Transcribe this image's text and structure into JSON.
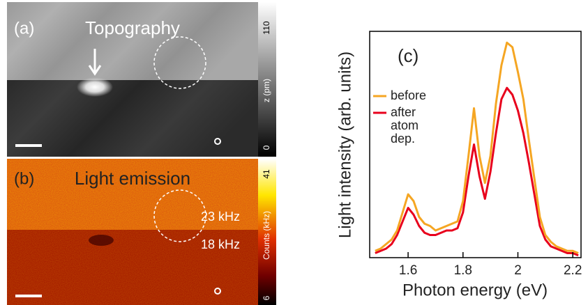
{
  "images": [
    {
      "panel": "(a)",
      "title": "Topography",
      "colorbar_top": "110",
      "colorbar_label": "z (pm)",
      "colorbar_bottom": "0"
    },
    {
      "panel": "(b)",
      "title": "Light emission",
      "colorbar_top": "41",
      "colorbar_label": "Counts (kHz)",
      "colorbar_bottom": "6",
      "upper_rate": "23 kHz",
      "lower_rate": "18 kHz"
    }
  ],
  "chart_data": {
    "type": "line",
    "panel": "(c)",
    "xlabel": "Photon energy (eV)",
    "ylabel": "Light intensity (arb. units)",
    "x": [
      1.48,
      1.5,
      1.52,
      1.54,
      1.56,
      1.58,
      1.6,
      1.62,
      1.64,
      1.66,
      1.68,
      1.7,
      1.72,
      1.74,
      1.76,
      1.78,
      1.8,
      1.82,
      1.84,
      1.86,
      1.88,
      1.9,
      1.92,
      1.94,
      1.96,
      1.98,
      2.0,
      2.02,
      2.04,
      2.06,
      2.08,
      2.1,
      2.12,
      2.14,
      2.16,
      2.18,
      2.2,
      2.22
    ],
    "series": [
      {
        "name": "before",
        "color": "#f5a623",
        "values": [
          0.03,
          0.04,
          0.06,
          0.08,
          0.12,
          0.2,
          0.28,
          0.25,
          0.18,
          0.15,
          0.14,
          0.12,
          0.13,
          0.14,
          0.15,
          0.16,
          0.25,
          0.45,
          0.66,
          0.45,
          0.33,
          0.45,
          0.68,
          0.85,
          0.95,
          0.93,
          0.82,
          0.7,
          0.52,
          0.35,
          0.18,
          0.1,
          0.07,
          0.05,
          0.04,
          0.03,
          0.03,
          0.02
        ]
      },
      {
        "name": "after atom dep.",
        "color": "#e8001c",
        "values": [
          0.02,
          0.03,
          0.04,
          0.06,
          0.1,
          0.16,
          0.22,
          0.19,
          0.14,
          0.11,
          0.1,
          0.1,
          0.11,
          0.12,
          0.12,
          0.13,
          0.2,
          0.36,
          0.5,
          0.36,
          0.26,
          0.38,
          0.55,
          0.7,
          0.75,
          0.72,
          0.65,
          0.55,
          0.42,
          0.28,
          0.14,
          0.08,
          0.05,
          0.04,
          0.03,
          0.02,
          0.02,
          0.01
        ]
      }
    ],
    "xlim": [
      1.46,
      2.23
    ],
    "ylim": [
      0,
      1
    ],
    "xticks": [
      1.6,
      1.8,
      2.0,
      2.2
    ]
  }
}
